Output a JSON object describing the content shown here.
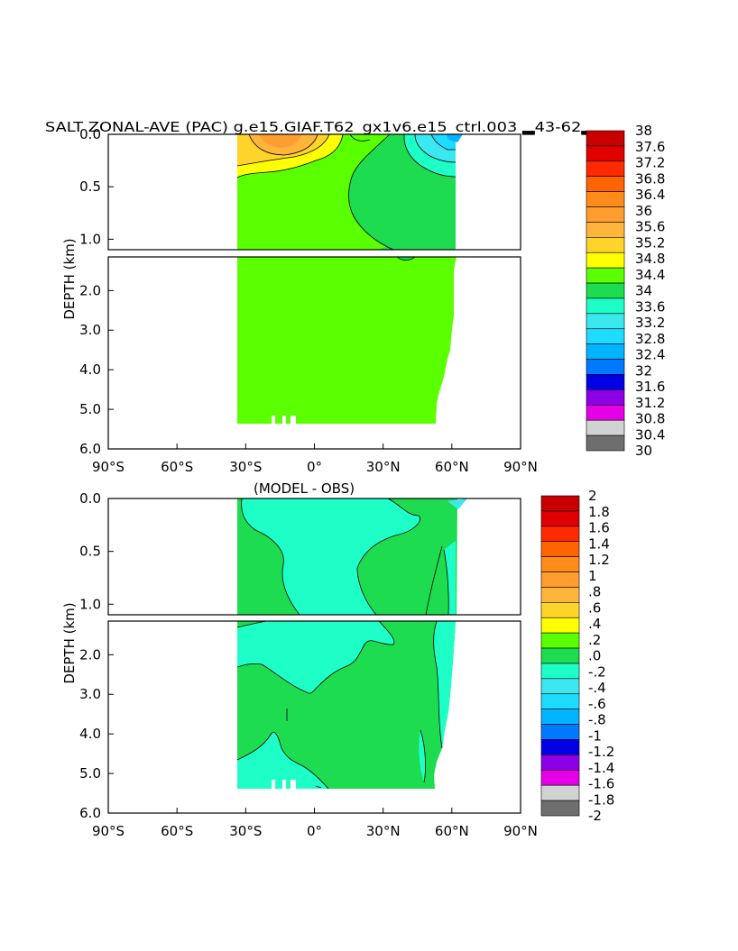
{
  "title": "SALT ZONAL-AVE (PAC) g.e15.GIAF.T62_gx1v6.e15_ctrl.003 ▂43-62▂",
  "diff_title": "(MODEL - OBS)",
  "ylabel": "DEPTH (km)",
  "x_tick_labels": [
    "90°S",
    "60°S",
    "30°S",
    "0°",
    "30°N",
    "60°N",
    "90°N"
  ],
  "y_upper_tick_labels": [
    "0.0",
    "0.5",
    "1.0"
  ],
  "y_lower_tick_labels": [
    "2.0",
    "3.0",
    "4.0",
    "5.0",
    "6.0"
  ],
  "colorbar1": {
    "labels": [
      "38",
      "37.6",
      "37.2",
      "36.8",
      "36.4",
      "36",
      "35.6",
      "35.2",
      "34.8",
      "34.4",
      "34",
      "33.6",
      "33.2",
      "32.8",
      "32.4",
      "32",
      "31.6",
      "31.2",
      "30.8",
      "30.4",
      "30"
    ],
    "colors": [
      "#c80000",
      "#e00000",
      "#ff2a00",
      "#ff6400",
      "#ff8c1a",
      "#ff9e2e",
      "#ffb43c",
      "#ffd42a",
      "#ffff00",
      "#5aff00",
      "#1edc50",
      "#1effc8",
      "#3ce8f0",
      "#1edcff",
      "#00b4ff",
      "#0078ff",
      "#0000e6",
      "#8c00e6",
      "#e600e6",
      "#d2d2d2",
      "#6e6e6e"
    ]
  },
  "colorbar2": {
    "labels": [
      "2",
      "1.8",
      "1.6",
      "1.4",
      "1.2",
      "1",
      ".8",
      ".6",
      ".4",
      ".2",
      ".0",
      "-.2",
      "-.4",
      "-.6",
      "-.8",
      "-1",
      "-1.2",
      "-1.4",
      "-1.6",
      "-1.8",
      "-2"
    ],
    "colors": [
      "#c80000",
      "#e00000",
      "#ff2a00",
      "#ff6400",
      "#ff8c1a",
      "#ff9e2e",
      "#ffb43c",
      "#ffd42a",
      "#ffff00",
      "#5aff00",
      "#1edc50",
      "#1effc8",
      "#3ce8f0",
      "#1edcff",
      "#00b4ff",
      "#0078ff",
      "#0000e6",
      "#8c00e6",
      "#e600e6",
      "#d2d2d2",
      "#6e6e6e"
    ]
  },
  "chart_data": [
    {
      "type": "heatmap",
      "title": "SALT ZONAL-AVE (PAC) g.e15.GIAF.T62_gx1v6.e15_ctrl.003 ▂43-62▂",
      "ylabel": "DEPTH (km)",
      "xlim": [
        -90,
        90
      ],
      "ylim": [
        6.0,
        0.0
      ],
      "data_extent_lat": [
        -34,
        62
      ],
      "data_max_depth_km": 5.4,
      "contour_levels": [
        30,
        30.4,
        30.8,
        31.2,
        31.6,
        32,
        32.4,
        32.8,
        33.2,
        33.6,
        34,
        34.4,
        34.8,
        35.2,
        35.6,
        36,
        36.4,
        36.8,
        37.2,
        37.6,
        38
      ],
      "regions": [
        {
          "range": [
            34.4,
            34.8
          ],
          "where": "most of the section below ~0.3 km"
        },
        {
          "range": [
            34.8,
            35.2
          ],
          "where": "upper 0.3 km, 34°S to 5°N"
        },
        {
          "range": [
            35.2,
            36.0
          ],
          "where": "surface near 25°S to 10°S"
        },
        {
          "range": [
            34.0,
            34.4
          ],
          "where": "north of ~10°N above ~1 km and near 35–45°N at ~1.1 km"
        },
        {
          "range": [
            32.4,
            34.0
          ],
          "where": "surface layer 40°N to 62°N"
        }
      ]
    },
    {
      "type": "heatmap",
      "title": "(MODEL - OBS)",
      "ylabel": "DEPTH (km)",
      "xlim": [
        -90,
        90
      ],
      "ylim": [
        6.0,
        0.0
      ],
      "contour_levels": [
        -2,
        -1.8,
        -1.6,
        -1.4,
        -1.2,
        -1,
        -0.8,
        -0.6,
        -0.4,
        -0.2,
        0,
        0.2,
        0.4,
        0.6,
        0.8,
        1,
        1.2,
        1.4,
        1.6,
        1.8,
        2
      ],
      "regions": [
        {
          "range": [
            0.0,
            0.2
          ],
          "where": "south of ~20°S above 1.3 km; north of ~25°N; below ~2.5 km"
        },
        {
          "range": [
            -0.2,
            0.0
          ],
          "where": "central Pacific 20°S–25°N from 0.2 to ~2.9 km; deep southern band near 5.4 km"
        },
        {
          "range": [
            0.2,
            0.4
          ],
          "where": "small patches near 45–60°N and surface south of 25°S"
        }
      ]
    }
  ]
}
